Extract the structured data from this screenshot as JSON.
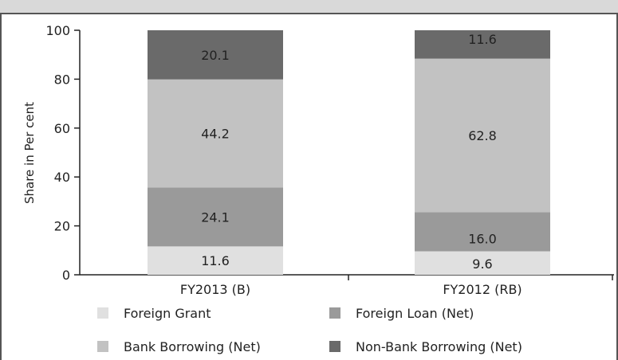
{
  "chart_data": {
    "type": "bar",
    "stacked": true,
    "categories": [
      "FY2013 (B)",
      "FY2012 (RB)"
    ],
    "series": [
      {
        "name": "Foreign Grant",
        "values": [
          11.6,
          9.6
        ],
        "color": "#e0e0e0"
      },
      {
        "name": "Foreign Loan (Net)",
        "values": [
          24.1,
          16.0
        ],
        "color": "#9a9a9a"
      },
      {
        "name": "Bank Borrowing (Net)",
        "values": [
          44.2,
          62.8
        ],
        "color": "#c2c2c2"
      },
      {
        "name": "Non-Bank Borrowing (Net)",
        "values": [
          20.1,
          11.6
        ],
        "color": "#6a6a6a"
      }
    ],
    "ylabel": "Share in Per cent",
    "ylim": [
      0,
      100
    ],
    "yticks": [
      0,
      20,
      40,
      60,
      80,
      100
    ],
    "grid": false,
    "legend_position": "bottom"
  }
}
